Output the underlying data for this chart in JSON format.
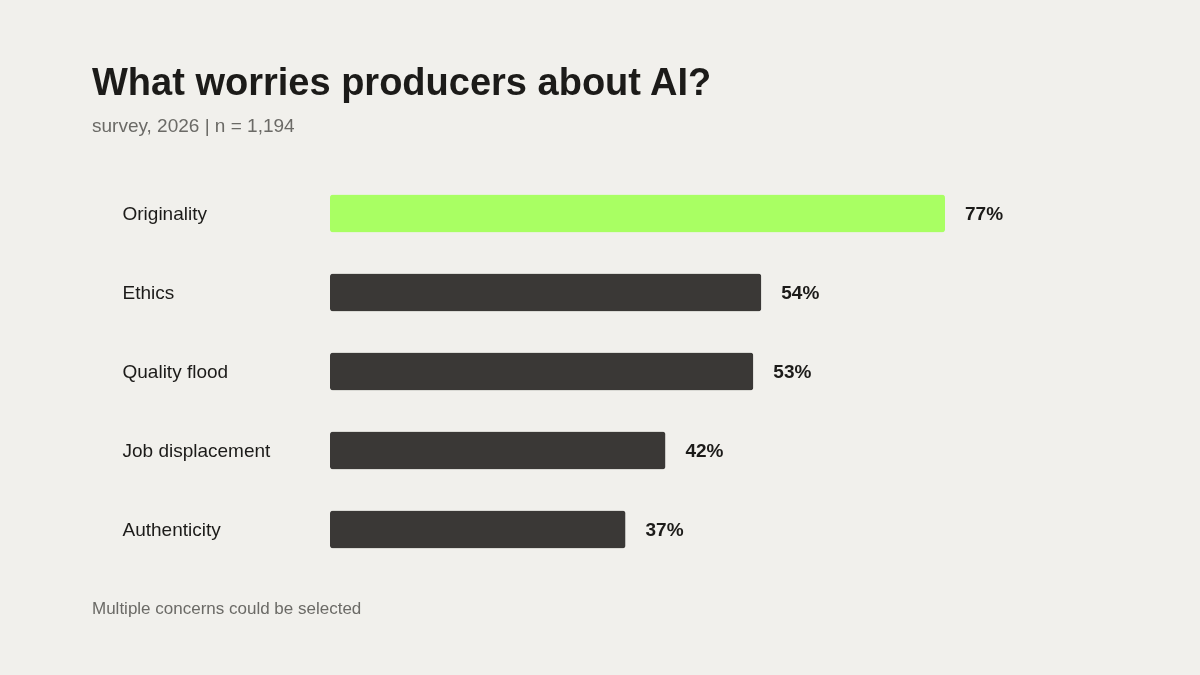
{
  "chart_data": {
    "type": "bar",
    "orientation": "horizontal",
    "title": "What worries producers about AI?",
    "subtitle": "survey, 2026 | n = 1,194",
    "categories": [
      "Originality",
      "Ethics",
      "Quality flood",
      "Job displacement",
      "Authenticity"
    ],
    "values": [
      77,
      54,
      53,
      42,
      37
    ],
    "colors": [
      "#a9ff63",
      "#3a3836",
      "#3a3836",
      "#3a3836",
      "#3a3836"
    ],
    "value_labels": [
      "77%",
      "54%",
      "53%",
      "42%",
      "37%"
    ],
    "annotations": [
      "Multiple concerns could be selected"
    ],
    "grid": false
  }
}
